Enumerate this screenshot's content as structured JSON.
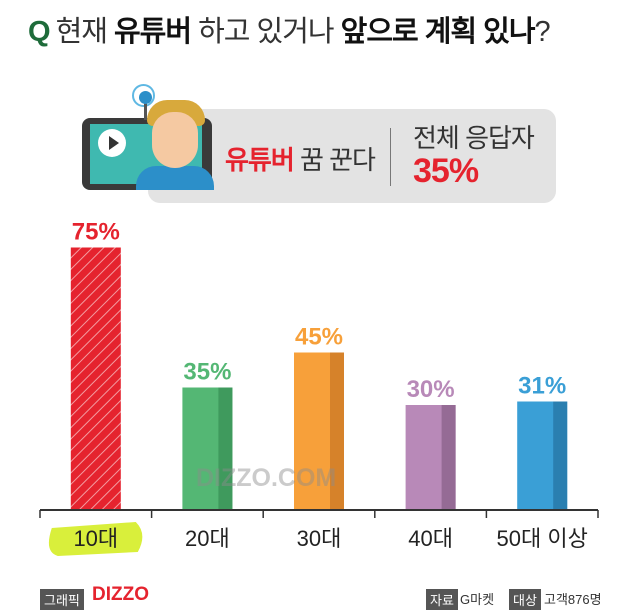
{
  "header": {
    "q": "Q",
    "title_part1": "현재",
    "title_bold1": "유튜버",
    "title_part2": "하고 있거나",
    "title_bold2": "앞으로 계획 있나",
    "title_end": "?"
  },
  "banner": {
    "dream_red": "유튜버",
    "dream_rest": " 꿈 꾼다",
    "total_label": "전체 응답자",
    "total_value": "35%"
  },
  "watermark": "DIZZO.COM",
  "footer": {
    "graphic_tag": "그래픽",
    "brand": "DIZZO",
    "source_tag": "자료",
    "source_value": "G마켓",
    "target_tag": "대상",
    "target_value": "고객876명"
  },
  "chart_data": {
    "type": "bar",
    "categories": [
      "10대",
      "20대",
      "30대",
      "40대",
      "50대 이상"
    ],
    "values": [
      75,
      35,
      45,
      30,
      31
    ],
    "value_labels": [
      "75%",
      "35%",
      "45%",
      "30%",
      "31%"
    ],
    "colors": [
      "#e5232e",
      "#54b774",
      "#f7a03a",
      "#b889b8",
      "#3a9fd6"
    ],
    "shade_colors": [
      "#c01e27",
      "#3f9a5d",
      "#d6822a",
      "#956b95",
      "#2a7fb0"
    ],
    "highlight_color": "#d9ef3b",
    "ylim": [
      0,
      80
    ],
    "title": "",
    "xlabel": "",
    "ylabel": ""
  }
}
